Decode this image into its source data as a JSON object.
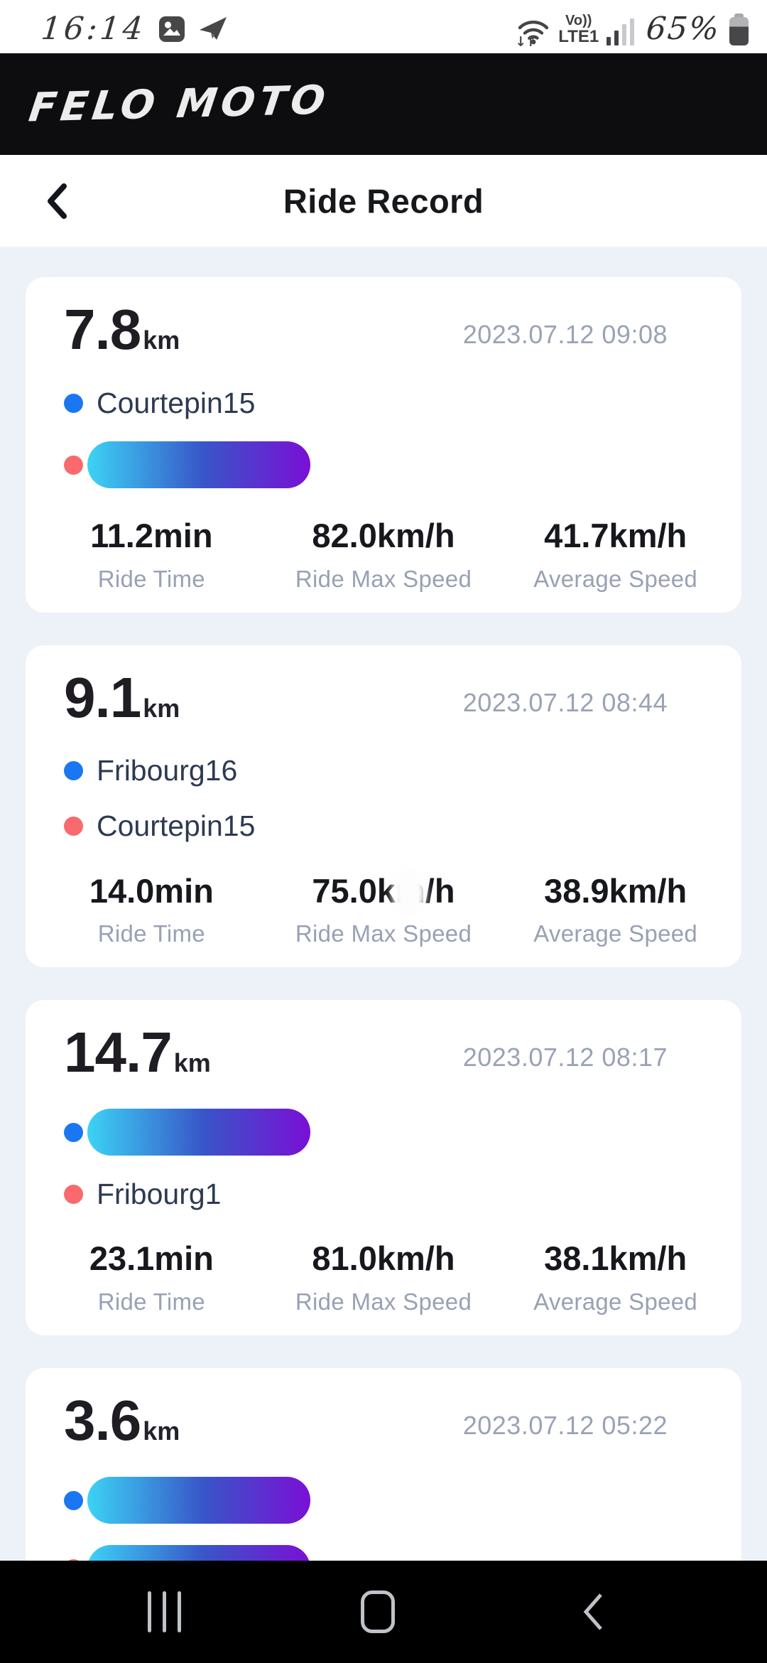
{
  "status_bar": {
    "time": "16:14",
    "carrier_top": "Vo))",
    "carrier_bottom": "LTE1",
    "battery": "65%",
    "left_icons": [
      "gallery-icon",
      "send-icon"
    ],
    "right_icons": [
      "wifi-icon",
      "signal-bars-icon",
      "battery-icon"
    ]
  },
  "brand_bar": {
    "logo": "FELO MOTO"
  },
  "nav_bar": {
    "title": "Ride Record"
  },
  "colors": {
    "accent_blue": "#1b76f3",
    "accent_red": "#f9696d",
    "pill_gradient": [
      "#3cd3f5",
      "#3856c8",
      "#7a0fd6"
    ],
    "page_bg": "#edf1f8",
    "card_bg": "#ffffff",
    "date_text": "#9aa2b6",
    "label_text": "#98a1b4"
  },
  "rides": [
    {
      "distance": "7.8",
      "unit": "km",
      "datetime": "2023.07.12 09:08",
      "points": [
        {
          "dot": "blue",
          "kind": "label",
          "label": "Courtepin15"
        },
        {
          "dot": "red",
          "kind": "pill"
        }
      ],
      "stats": [
        {
          "value": "11.2min",
          "label": "Ride Time"
        },
        {
          "value": "82.0km/h",
          "label": "Ride Max Speed"
        },
        {
          "value": "41.7km/h",
          "label": "Average Speed"
        }
      ]
    },
    {
      "distance": "9.1",
      "unit": "km",
      "datetime": "2023.07.12 08:44",
      "points": [
        {
          "dot": "blue",
          "kind": "label",
          "label": "Fribourg16"
        },
        {
          "dot": "red",
          "kind": "label",
          "label": "Courtepin15"
        }
      ],
      "stats": [
        {
          "value": "14.0min",
          "label": "Ride Time"
        },
        {
          "value": "75.0km/h",
          "label": "Ride Max Speed",
          "smudge": true
        },
        {
          "value": "38.9km/h",
          "label": "Average Speed"
        }
      ]
    },
    {
      "distance": "14.7",
      "unit": "km",
      "datetime": "2023.07.12 08:17",
      "points": [
        {
          "dot": "blue",
          "kind": "pill"
        },
        {
          "dot": "red",
          "kind": "label",
          "label": "Fribourg1"
        }
      ],
      "stats": [
        {
          "value": "23.1min",
          "label": "Ride Time"
        },
        {
          "value": "81.0km/h",
          "label": "Ride Max Speed"
        },
        {
          "value": "38.1km/h",
          "label": "Average Speed"
        }
      ]
    },
    {
      "distance": "3.6",
      "unit": "km",
      "datetime": "2023.07.12 05:22",
      "points": [
        {
          "dot": "blue",
          "kind": "pill"
        },
        {
          "dot": "red",
          "kind": "pill"
        }
      ],
      "stats": []
    }
  ],
  "bottom_nav": {
    "items": [
      "recents",
      "home",
      "back"
    ]
  }
}
